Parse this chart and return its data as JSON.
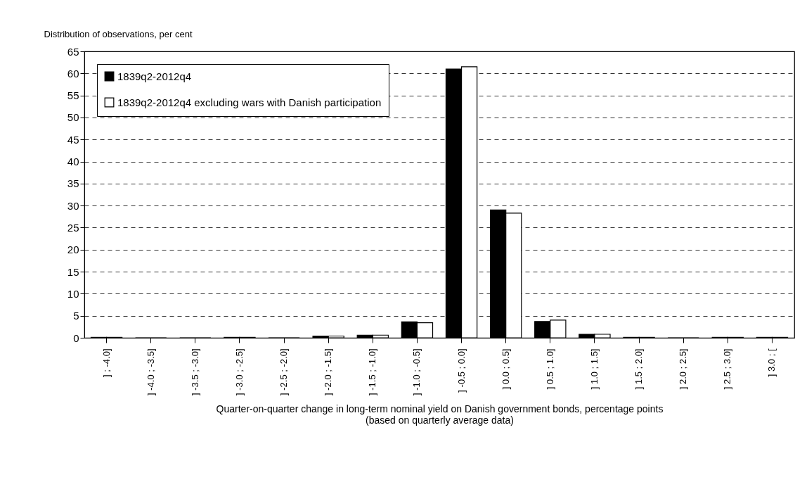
{
  "chart_data": {
    "type": "bar",
    "ylabel": "Distribution of observations, per cent",
    "xlabel": "Quarter-on-quarter change in long-term nominal yield on Danish government bonds, percentage points (based on quarterly average data)",
    "categories": [
      "]          ; -4.0]",
      "] -4.0 ; -3.5]",
      "] -3.5 ; -3.0]",
      "] -3.0 ; -2.5]",
      "] -2.5 ; -2.0]",
      "] -2.0 ; -1.5]",
      "] -1.5 ; -1.0]",
      "] -1.0 ; -0.5]",
      "] -0.5 ;  0.0]",
      "]  0.0 ;  0.5]",
      "]  0.5 ;  1.0]",
      "]  1.0 ;  1.5]",
      "]  1.5 ;  2.0]",
      "]  2.0 ;  2.5]",
      "]  2.5 ;  3.0]",
      "]  3.0 ;          ["
    ],
    "series": [
      {
        "name": "1839q2-2012q4",
        "color": "#000000",
        "values": [
          0.1,
          0,
          0,
          0.1,
          0,
          0.4,
          0.6,
          3.6,
          61.0,
          29.0,
          3.7,
          0.8,
          0.1,
          0,
          0.1,
          0.1
        ]
      },
      {
        "name": "1839q2-2012q4 excluding wars with Danish participation",
        "color": "#ffffff",
        "values": [
          0.1,
          0,
          0,
          0.1,
          0,
          0.4,
          0.6,
          3.4,
          61.5,
          28.3,
          4.0,
          0.8,
          0.1,
          0,
          0.1,
          0.1
        ]
      }
    ],
    "ylim": [
      0,
      65
    ],
    "yticks": [
      0,
      5,
      10,
      15,
      20,
      25,
      30,
      35,
      40,
      45,
      50,
      55,
      60,
      65
    ],
    "grid": "y",
    "legend": "top left"
  }
}
